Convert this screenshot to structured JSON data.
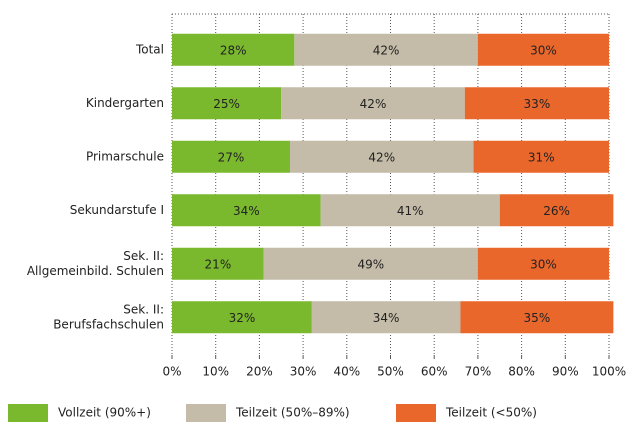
{
  "chart_data": {
    "type": "stacked-bar-horizontal",
    "categories": [
      "Total",
      "Kindergarten",
      "Primarschule",
      "Sekundarstufe I",
      [
        "Sek. II:",
        "Allgemeinbild. Schulen"
      ],
      [
        "Sek. II:",
        "Berufsfachschulen"
      ]
    ],
    "series": [
      {
        "name": "Vollzeit (90%+)",
        "color": "#7ab92d",
        "values": [
          28,
          25,
          27,
          34,
          21,
          32
        ],
        "value_labels": [
          "28%",
          "25%",
          "27%",
          "34%",
          "21%",
          "32%"
        ]
      },
      {
        "name": "Teilzeit (50%–89%)",
        "color": "#c4bca8",
        "values": [
          42,
          42,
          42,
          41,
          49,
          34
        ],
        "value_labels": [
          "42%",
          "42%",
          "42%",
          "41%",
          "49%",
          "34%"
        ]
      },
      {
        "name": "Teilzeit (<50%)",
        "color": "#ea672b",
        "values": [
          30,
          33,
          31,
          26,
          30,
          35
        ],
        "value_labels": [
          "30%",
          "33%",
          "31%",
          "26%",
          "30%",
          "35%"
        ]
      }
    ],
    "xlim": [
      0,
      100
    ],
    "xticks": [
      {
        "value": 0,
        "label": "0%"
      },
      {
        "value": 10,
        "label": "10%"
      },
      {
        "value": 20,
        "label": "20%"
      },
      {
        "value": 30,
        "label": "30%"
      },
      {
        "value": 40,
        "label": "40%"
      },
      {
        "value": 50,
        "label": "50%"
      },
      {
        "value": 60,
        "label": "60%"
      },
      {
        "value": 70,
        "label": "70%"
      },
      {
        "value": 80,
        "label": "80%"
      },
      {
        "value": 90,
        "label": "90%"
      },
      {
        "value": 100,
        "label": "100%"
      }
    ],
    "grid": true,
    "legend": "bottom"
  }
}
